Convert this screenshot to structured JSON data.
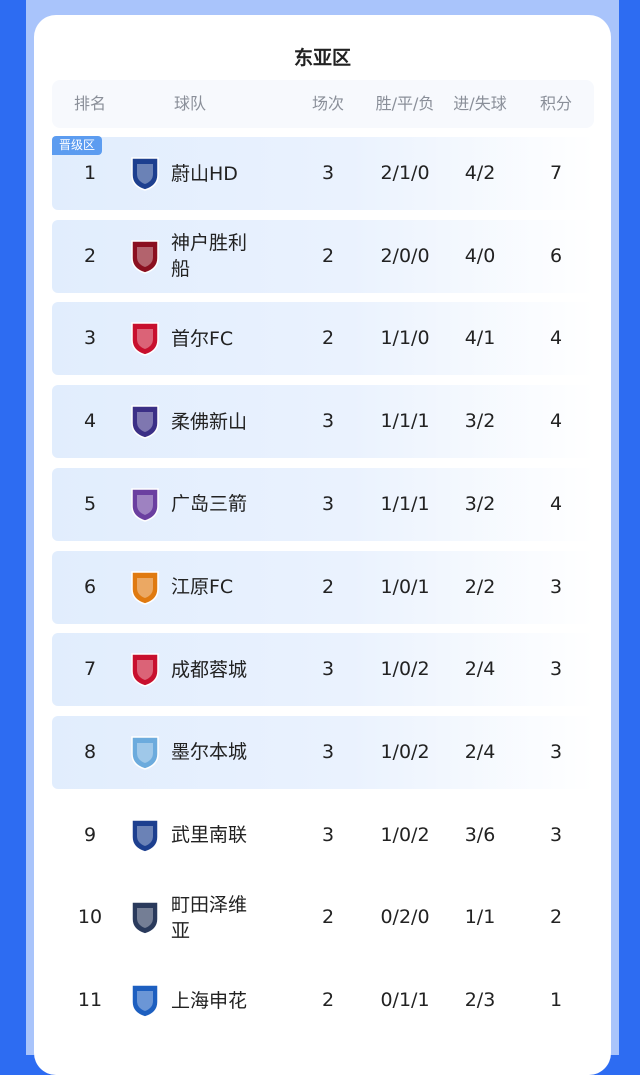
{
  "title": "东亚区",
  "headers": {
    "rank": "排名",
    "team": "球队",
    "played": "场次",
    "wdl": "胜/平/负",
    "goals": "进/失球",
    "points": "积分"
  },
  "promotion_badge": "晋级区",
  "colors": {
    "background": "#2d6cf2",
    "badge": "#5c9cf0",
    "highlight_row": "#e1edfd"
  },
  "rows": [
    {
      "rank": "1",
      "team": "蔚山HD",
      "played": "3",
      "wdl": "2/1/0",
      "goals": "4/2",
      "points": "7",
      "logo": "ulsan-crest",
      "logo_color": "#1d3f8f",
      "highlight": true,
      "badge": true
    },
    {
      "rank": "2",
      "team": "神户胜利船",
      "played": "2",
      "wdl": "2/0/0",
      "goals": "4/0",
      "points": "6",
      "logo": "vissel-kobe-crest",
      "logo_color": "#8b1020",
      "highlight": true
    },
    {
      "rank": "3",
      "team": "首尔FC",
      "played": "2",
      "wdl": "1/1/0",
      "goals": "4/1",
      "points": "4",
      "logo": "fc-seoul-crest",
      "logo_color": "#c8102e",
      "highlight": true
    },
    {
      "rank": "4",
      "team": "柔佛新山",
      "played": "3",
      "wdl": "1/1/1",
      "goals": "3/2",
      "points": "4",
      "logo": "johor-crest",
      "logo_color": "#3b2f86",
      "highlight": true
    },
    {
      "rank": "5",
      "team": "广岛三箭",
      "played": "3",
      "wdl": "1/1/1",
      "goals": "3/2",
      "points": "4",
      "logo": "hiroshima-crest",
      "logo_color": "#6b3fa0",
      "highlight": true
    },
    {
      "rank": "6",
      "team": "江原FC",
      "played": "2",
      "wdl": "1/0/1",
      "goals": "2/2",
      "points": "3",
      "logo": "gangwon-crest",
      "logo_color": "#e07a10",
      "highlight": true
    },
    {
      "rank": "7",
      "team": "成都蓉城",
      "played": "3",
      "wdl": "1/0/2",
      "goals": "2/4",
      "points": "3",
      "logo": "chengdu-crest",
      "logo_color": "#c8102e",
      "highlight": true
    },
    {
      "rank": "8",
      "team": "墨尔本城",
      "played": "3",
      "wdl": "1/0/2",
      "goals": "2/4",
      "points": "3",
      "logo": "melbourne-city-crest",
      "logo_color": "#6cabdd",
      "highlight": true
    },
    {
      "rank": "9",
      "team": "武里南联",
      "played": "3",
      "wdl": "1/0/2",
      "goals": "3/6",
      "points": "3",
      "logo": "buriram-crest",
      "logo_color": "#1d3f8f",
      "highlight": false
    },
    {
      "rank": "10",
      "team": "町田泽维亚",
      "played": "2",
      "wdl": "0/2/0",
      "goals": "1/1",
      "points": "2",
      "logo": "machida-crest",
      "logo_color": "#2a3a5c",
      "highlight": false
    },
    {
      "rank": "11",
      "team": "上海申花",
      "played": "2",
      "wdl": "0/1/1",
      "goals": "2/3",
      "points": "1",
      "logo": "shenhua-crest",
      "logo_color": "#1d5fc0",
      "highlight": false
    }
  ]
}
